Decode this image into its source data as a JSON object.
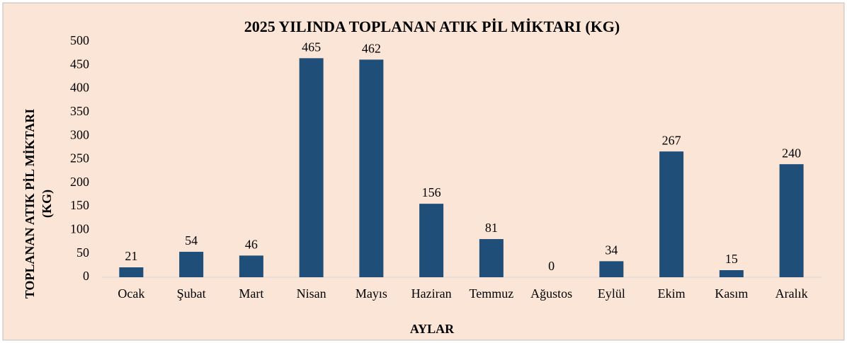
{
  "chart_data": {
    "type": "bar",
    "title": "2025 YILINDA TOPLANAN ATIK PİL MİKTARI (KG)",
    "xlabel": "AYLAR",
    "ylabel": [
      "TOPLANAN ATIK PİL MİKTARI",
      "(KG)"
    ],
    "categories": [
      "Ocak",
      "Şubat",
      "Mart",
      "Nisan",
      "Mayıs",
      "Haziran",
      "Temmuz",
      "Ağustos",
      "Eylül",
      "Ekim",
      "Kasım",
      "Aralık"
    ],
    "values": [
      21,
      54,
      46,
      465,
      462,
      156,
      81,
      0,
      34,
      267,
      15,
      240
    ],
    "color": "#1f4e79",
    "ylim": [
      0,
      500
    ],
    "yticks": [
      0,
      50,
      100,
      150,
      200,
      250,
      300,
      350,
      400,
      450,
      500
    ],
    "grid": false,
    "data_labels": true
  }
}
